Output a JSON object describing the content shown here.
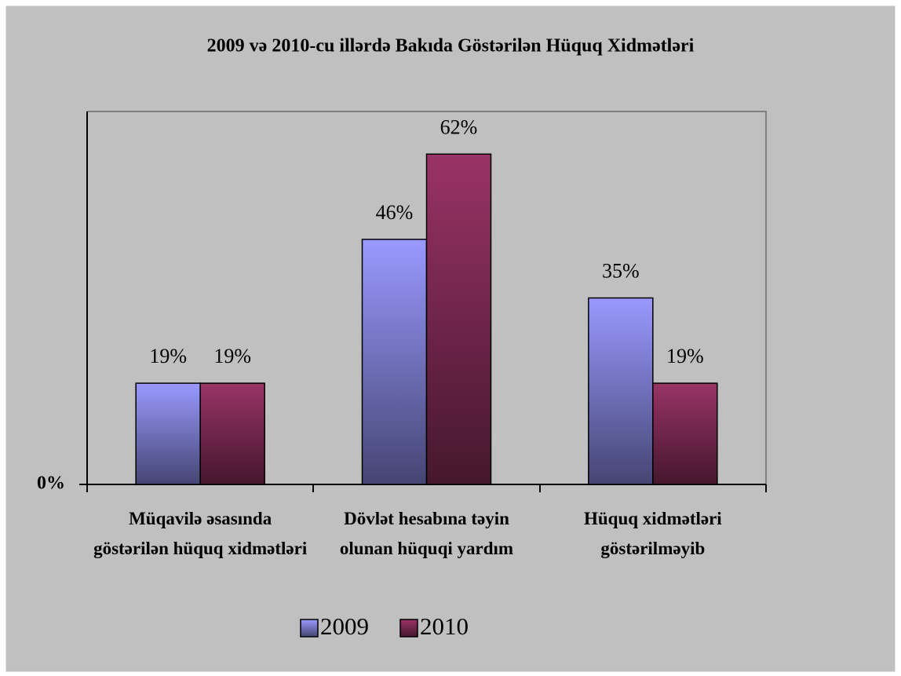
{
  "chart_data": {
    "type": "bar",
    "title": "2009 və 2010-cu illərdə Bakıda Göstərilən Hüquq Xidmətləri",
    "categories": [
      "Müqavilə əsasında göstərilən hüquq xidmətləri",
      "Dövlət hesabına təyin olunan hüquqi yardım",
      "Hüquq xidmətləri göstərilməyib"
    ],
    "series": [
      {
        "name": "2009",
        "color": "#9999ff",
        "values": [
          19,
          46,
          35
        ],
        "value_labels": [
          "19%",
          "46%",
          "35%"
        ]
      },
      {
        "name": "2010",
        "color": "#993366",
        "values": [
          19,
          62,
          19
        ],
        "value_labels": [
          "19%",
          "62%",
          "19%"
        ]
      }
    ],
    "ylim": [
      0,
      70
    ],
    "yticks": [
      {
        "value": 0,
        "label": "0%"
      }
    ],
    "grid": false,
    "legend": "bottom"
  }
}
